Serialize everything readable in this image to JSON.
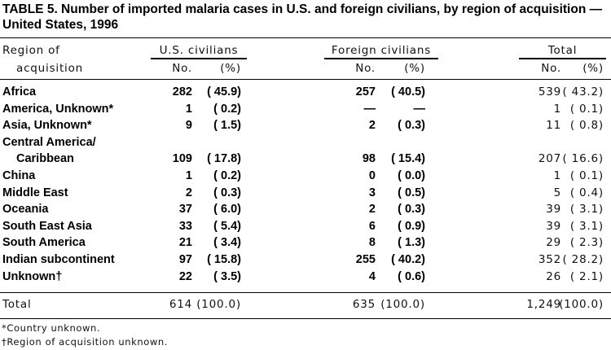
{
  "title": "TABLE 5. Number of imported malaria cases in U.S. and foreign civilians, by region of acquisition — United States, 1996",
  "headers": {
    "region_line1": "Region of",
    "region_line2": "acquisition",
    "groups": [
      "U.S. civilians",
      "Foreign civilians",
      "Total"
    ],
    "no": "No.",
    "pct": "(%)"
  },
  "rows": [
    {
      "region": "Africa",
      "us_no": "282",
      "us_pct": "( 45.9)",
      "f_no": "257",
      "f_pct": "( 40.5)",
      "t_no": "539",
      "t_pct": "( 43.2)"
    },
    {
      "region": "America, Unknown*",
      "us_no": "1",
      "us_pct": "( 0.2)",
      "f_no": "—",
      "f_pct": "—",
      "t_no": "1",
      "t_pct": "( 0.1)"
    },
    {
      "region": "Asia, Unknown*",
      "us_no": "9",
      "us_pct": "( 1.5)",
      "f_no": "2",
      "f_pct": "( 0.3)",
      "t_no": "11",
      "t_pct": "( 0.8)"
    },
    {
      "region": "Central America/",
      "us_no": "",
      "us_pct": "",
      "f_no": "",
      "f_pct": "",
      "t_no": "",
      "t_pct": ""
    },
    {
      "region": "Caribbean",
      "indent": true,
      "us_no": "109",
      "us_pct": "( 17.8)",
      "f_no": "98",
      "f_pct": "( 15.4)",
      "t_no": "207",
      "t_pct": "( 16.6)"
    },
    {
      "region": "China",
      "us_no": "1",
      "us_pct": "( 0.2)",
      "f_no": "0",
      "f_pct": "( 0.0)",
      "t_no": "1",
      "t_pct": "( 0.1)"
    },
    {
      "region": "Middle East",
      "us_no": "2",
      "us_pct": "( 0.3)",
      "f_no": "3",
      "f_pct": "( 0.5)",
      "t_no": "5",
      "t_pct": "( 0.4)"
    },
    {
      "region": "Oceania",
      "us_no": "37",
      "us_pct": "( 6.0)",
      "f_no": "2",
      "f_pct": "( 0.3)",
      "t_no": "39",
      "t_pct": "( 3.1)"
    },
    {
      "region": "South East Asia",
      "us_no": "33",
      "us_pct": "( 5.4)",
      "f_no": "6",
      "f_pct": "( 0.9)",
      "t_no": "39",
      "t_pct": "( 3.1)"
    },
    {
      "region": "South America",
      "us_no": "21",
      "us_pct": "( 3.4)",
      "f_no": "8",
      "f_pct": "( 1.3)",
      "t_no": "29",
      "t_pct": "( 2.3)"
    },
    {
      "region": "Indian subcontinent",
      "us_no": "97",
      "us_pct": "( 15.8)",
      "f_no": "255",
      "f_pct": "( 40.2)",
      "t_no": "352",
      "t_pct": "( 28.2)"
    },
    {
      "region": "Unknown†",
      "us_no": "22",
      "us_pct": "( 3.5)",
      "f_no": "4",
      "f_pct": "( 0.6)",
      "t_no": "26",
      "t_pct": "( 2.1)"
    }
  ],
  "total_row": {
    "region": "Total",
    "us_no": "614",
    "us_pct": "(100.0)",
    "f_no": "635",
    "f_pct": "(100.0)",
    "t_no": "1,249",
    "t_pct": "(100.0)"
  },
  "footnotes": [
    "*Country unknown.",
    "†Region of acquisition unknown."
  ]
}
